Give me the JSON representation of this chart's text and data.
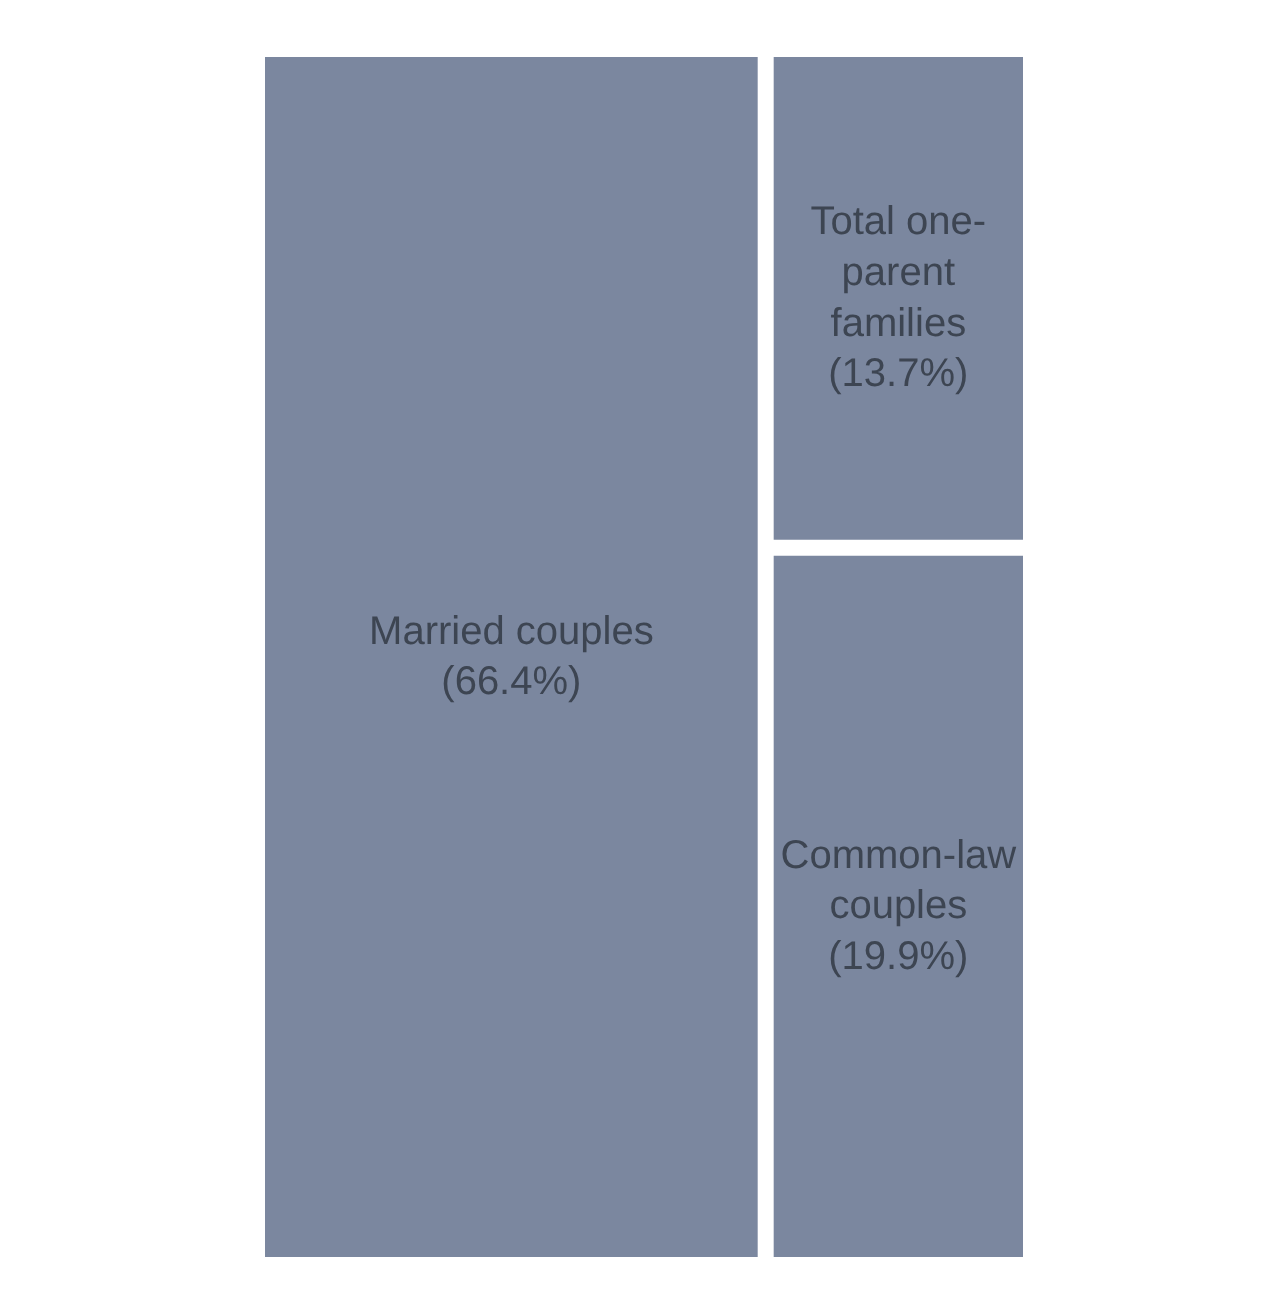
{
  "chart_data": {
    "type": "other",
    "categories": [
      "Married couples",
      "Total one-parent families",
      "Common-law couples"
    ],
    "values": [
      66.4,
      13.7,
      19.9
    ],
    "value_labels": [
      "(66.4%)",
      "(13.7%)",
      "(19.9%)"
    ],
    "color": "#7b879f"
  }
}
